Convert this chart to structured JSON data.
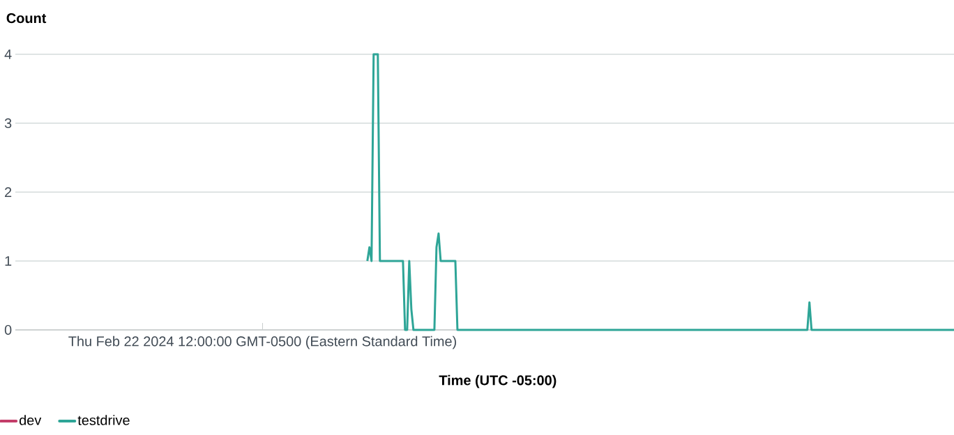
{
  "chart_data": {
    "type": "line",
    "ylabel": "Count",
    "xlabel": "Time (UTC -05:00)",
    "categories": [
      null,
      null,
      null,
      null,
      null,
      null,
      null,
      null,
      null,
      null,
      null,
      null,
      null,
      null,
      null,
      null,
      null,
      null,
      null,
      null,
      null,
      null,
      null,
      null,
      null,
      null,
      null,
      null,
      null,
      null,
      null,
      null,
      null,
      null,
      null,
      null,
      null,
      null,
      null,
      null,
      null,
      null,
      null,
      null,
      null,
      null,
      null,
      null,
      null,
      null,
      null,
      null,
      null,
      null,
      null,
      null,
      null,
      null,
      null,
      null,
      null,
      null,
      null,
      null,
      null,
      null,
      null,
      null,
      null,
      null,
      null,
      null,
      null,
      null,
      null,
      null,
      null,
      null,
      null,
      null,
      null,
      null,
      null,
      null,
      null,
      null,
      null,
      null,
      null,
      null,
      null,
      null,
      null,
      null,
      null,
      null,
      null,
      null,
      null,
      null,
      null,
      null,
      null,
      null,
      null,
      null,
      null,
      null,
      null,
      null,
      null,
      null,
      null,
      null,
      null,
      null,
      null,
      null,
      "Thu Feb 22 2024 12:00:00 GMT-0500 (Eastern Standard Time)",
      null,
      null,
      null,
      null,
      null,
      null,
      null,
      null,
      null,
      null,
      null,
      null,
      null,
      null,
      null,
      null,
      null,
      null,
      null,
      null,
      null,
      null,
      null,
      null,
      null,
      null,
      null,
      null,
      null,
      null,
      null,
      null,
      null,
      null,
      null,
      null,
      null,
      null,
      null,
      null,
      null,
      null,
      null,
      null,
      null,
      null,
      null,
      null,
      null,
      null,
      null,
      null,
      null,
      null,
      null,
      null,
      null,
      null,
      null,
      null,
      null,
      null,
      null,
      null,
      null,
      null,
      null,
      null,
      null,
      null,
      null,
      null,
      null,
      null,
      null,
      null,
      null,
      null,
      null,
      null,
      null,
      null,
      null,
      null,
      null,
      null,
      null,
      null,
      null,
      null,
      null,
      null,
      null,
      null,
      null,
      null,
      null,
      null,
      null,
      null,
      null,
      null,
      null,
      null,
      null,
      null,
      null,
      null,
      null,
      null,
      null,
      null,
      null,
      null,
      null,
      null,
      null,
      null,
      null,
      null,
      null,
      null,
      null,
      null,
      null,
      null,
      null,
      null,
      null,
      null,
      null,
      null,
      null,
      null,
      null,
      null,
      null,
      null,
      null,
      null,
      null,
      null,
      null,
      null,
      null,
      null,
      null,
      null,
      null,
      null,
      null,
      null,
      null,
      null,
      null,
      null,
      null,
      null,
      null,
      null,
      null,
      null,
      null,
      null,
      null,
      null,
      null,
      null,
      null,
      null,
      null,
      null,
      null,
      null,
      null,
      null,
      null,
      null,
      null,
      null,
      null,
      null,
      null,
      null,
      null,
      null,
      null,
      null,
      null,
      null,
      null,
      null,
      null,
      null,
      null,
      null,
      null,
      null,
      null,
      null,
      null,
      null,
      null,
      null,
      null,
      null,
      null,
      null,
      null,
      null,
      null,
      null,
      null,
      null,
      null,
      null,
      null,
      null,
      null,
      null,
      null,
      null,
      null,
      null,
      null,
      null,
      null,
      null,
      null,
      null,
      null,
      null,
      null,
      null,
      null,
      null,
      null,
      null,
      null,
      null,
      null,
      null,
      null,
      null,
      null,
      null,
      null,
      null,
      null,
      null,
      null,
      null,
      null,
      null,
      null,
      null,
      null,
      null,
      null,
      null,
      null,
      null,
      null,
      null,
      null,
      null,
      null,
      null,
      null,
      null,
      null,
      null,
      null,
      null,
      null,
      null,
      null,
      null,
      null,
      null,
      null,
      null,
      null,
      null,
      null,
      null,
      null,
      null,
      null,
      null,
      null,
      null,
      null,
      null,
      null,
      null,
      null,
      null,
      null,
      null,
      null,
      null,
      null,
      null,
      null,
      null,
      null,
      null,
      null,
      null,
      null,
      null,
      null,
      null,
      null,
      null,
      null,
      null,
      null,
      null,
      null,
      null,
      null,
      null,
      null,
      null,
      null,
      null,
      null,
      null
    ],
    "series": [
      {
        "name": "dev",
        "color": "#c33d69",
        "values": [
          null,
          null,
          null,
          null,
          null,
          null,
          null,
          null,
          null,
          null,
          null,
          null,
          null,
          null,
          null,
          null,
          null,
          null,
          null,
          null,
          null,
          null,
          null,
          null,
          null,
          null,
          null,
          null,
          null,
          null,
          null,
          null,
          null,
          null,
          null,
          null,
          null,
          null,
          null,
          null,
          null,
          null,
          null,
          null,
          null,
          null,
          null,
          null,
          null,
          null,
          null,
          null,
          null,
          null,
          null,
          null,
          null,
          null,
          null,
          null,
          null,
          null,
          null,
          null,
          null,
          null,
          null,
          null,
          null,
          null,
          null,
          null,
          null,
          null,
          null,
          null,
          null,
          null,
          null,
          null,
          null,
          null,
          null,
          null,
          null,
          null,
          null,
          null,
          null,
          null,
          null,
          null,
          null,
          null,
          null,
          null,
          null,
          null,
          null,
          null,
          null,
          null,
          null,
          null,
          null,
          null,
          null,
          null,
          null,
          null,
          null,
          null,
          null,
          null,
          null,
          null,
          null,
          null,
          null,
          null,
          null,
          null,
          null,
          null,
          null,
          null,
          null,
          null,
          null,
          null,
          null,
          null,
          null,
          null,
          null,
          null,
          null,
          null,
          null,
          null,
          null,
          null,
          null,
          null,
          null,
          null,
          null,
          null,
          null,
          null,
          null,
          null,
          null,
          null,
          null,
          null,
          null,
          null,
          null,
          null,
          null,
          null,
          null,
          null,
          null,
          null,
          null,
          null,
          null,
          null,
          null,
          null,
          null,
          null,
          null,
          null,
          null,
          null,
          null,
          null,
          null,
          null,
          null,
          null,
          null,
          null,
          null,
          null,
          null,
          null,
          null,
          null,
          null,
          null,
          null,
          null,
          null,
          null,
          null,
          null,
          null,
          null,
          null,
          null,
          null,
          null,
          null,
          null,
          null,
          null,
          null,
          null,
          null,
          null,
          null,
          null,
          null,
          null,
          null,
          null,
          null,
          null,
          null,
          null,
          null,
          null,
          null,
          null,
          null,
          null,
          null,
          null,
          null,
          null,
          null,
          null,
          null,
          null,
          null,
          null,
          null,
          null,
          null,
          null,
          null,
          null,
          null,
          null,
          null,
          null,
          null,
          null,
          null,
          null,
          null,
          null,
          null,
          null,
          null,
          null,
          null,
          null,
          null,
          null,
          null,
          null,
          null,
          null,
          null,
          null,
          null,
          null,
          null,
          null,
          null,
          null,
          null,
          null,
          null,
          null,
          null,
          null,
          null,
          null,
          null,
          null,
          null,
          null,
          null,
          null,
          null,
          null,
          null,
          null,
          null,
          null,
          null,
          null,
          null,
          null,
          null,
          null,
          null,
          null,
          null,
          null,
          null,
          null,
          null,
          null,
          null,
          null,
          null,
          null,
          null,
          null,
          null,
          null,
          null,
          null,
          null,
          null,
          null,
          null,
          null,
          null,
          null,
          null,
          null,
          null,
          null,
          null,
          null,
          null,
          null,
          null,
          null,
          null,
          null,
          null,
          null,
          null,
          null,
          null,
          null,
          null,
          null,
          null,
          null,
          null,
          null,
          null,
          null,
          null,
          null,
          null,
          null,
          null,
          null,
          null,
          null,
          null,
          null,
          null,
          null,
          null,
          null,
          null,
          null,
          null,
          null,
          null,
          null,
          null,
          null,
          null,
          null,
          null,
          null,
          null,
          null,
          null,
          null,
          null,
          null,
          null,
          null,
          null,
          null,
          null,
          null,
          null,
          null,
          null,
          null,
          null,
          null,
          null,
          null,
          null,
          null,
          null,
          null,
          null,
          null,
          null,
          null,
          null,
          null,
          null,
          null,
          null,
          null,
          null,
          null,
          null,
          null,
          null,
          null,
          null,
          null,
          null,
          null,
          null,
          null,
          null,
          null,
          null,
          null,
          null,
          null,
          null,
          null,
          null,
          null,
          null,
          null,
          null,
          null,
          null,
          null,
          null,
          null,
          null,
          null,
          null,
          null,
          null,
          null
        ]
      },
      {
        "name": "testdrive",
        "color": "#2ea597",
        "values": [
          null,
          null,
          null,
          null,
          null,
          null,
          null,
          null,
          null,
          null,
          null,
          null,
          null,
          null,
          null,
          null,
          null,
          null,
          null,
          null,
          null,
          null,
          null,
          null,
          null,
          null,
          null,
          null,
          null,
          null,
          null,
          null,
          null,
          null,
          null,
          null,
          null,
          null,
          null,
          null,
          null,
          null,
          null,
          null,
          null,
          null,
          null,
          null,
          null,
          null,
          null,
          null,
          null,
          null,
          null,
          null,
          null,
          null,
          null,
          null,
          null,
          null,
          null,
          null,
          null,
          null,
          null,
          null,
          null,
          null,
          null,
          null,
          null,
          null,
          null,
          null,
          null,
          null,
          null,
          null,
          null,
          null,
          null,
          null,
          null,
          null,
          null,
          null,
          null,
          null,
          null,
          null,
          null,
          null,
          null,
          null,
          null,
          null,
          null,
          null,
          null,
          null,
          null,
          null,
          null,
          null,
          null,
          null,
          null,
          null,
          null,
          null,
          null,
          null,
          null,
          null,
          null,
          null,
          null,
          null,
          null,
          null,
          null,
          null,
          null,
          null,
          null,
          null,
          null,
          null,
          null,
          null,
          null,
          null,
          null,
          null,
          null,
          null,
          null,
          null,
          null,
          null,
          null,
          null,
          null,
          null,
          null,
          null,
          null,
          null,
          null,
          null,
          null,
          null,
          null,
          null,
          null,
          null,
          null,
          null,
          null,
          null,
          null,
          null,
          null,
          null,
          null,
          null,
          1,
          1.2,
          1,
          4,
          4,
          4,
          1,
          1,
          1,
          1,
          1,
          1,
          1,
          1,
          1,
          1,
          1,
          1,
          0,
          0,
          1,
          0.3,
          0,
          0,
          0,
          0,
          0,
          0,
          0,
          0,
          0,
          0,
          0,
          1.2,
          1.4,
          1,
          1,
          1,
          1,
          1,
          1,
          1,
          1,
          0,
          0,
          0,
          0,
          0,
          0,
          0,
          0,
          0,
          0,
          0,
          0,
          0,
          0,
          0,
          0,
          0,
          0,
          0,
          0,
          0,
          0,
          0,
          0,
          0,
          0,
          0,
          0,
          0,
          0,
          0,
          0,
          0,
          0,
          0,
          0,
          0,
          0,
          0,
          0,
          0,
          0,
          0,
          0,
          0,
          0,
          0,
          0,
          0,
          0,
          0,
          0,
          0,
          0,
          0,
          0,
          0,
          0,
          0,
          0,
          0,
          0,
          0,
          0,
          0,
          0,
          0,
          0,
          0,
          0,
          0,
          0,
          0,
          0,
          0,
          0,
          0,
          0,
          0,
          0,
          0,
          0,
          0,
          0,
          0,
          0,
          0,
          0,
          0,
          0,
          0,
          0,
          0,
          0,
          0,
          0,
          0,
          0,
          0,
          0,
          0,
          0,
          0,
          0,
          0,
          0,
          0,
          0,
          0,
          0,
          0,
          0,
          0,
          0,
          0,
          0,
          0,
          0,
          0,
          0,
          0,
          0,
          0,
          0,
          0,
          0,
          0,
          0,
          0,
          0,
          0,
          0,
          0,
          0,
          0,
          0,
          0,
          0,
          0,
          0,
          0,
          0,
          0,
          0,
          0,
          0,
          0,
          0,
          0,
          0,
          0,
          0,
          0,
          0,
          0,
          0,
          0,
          0,
          0,
          0,
          0,
          0,
          0,
          0,
          0,
          0,
          0,
          0,
          0.4,
          0,
          0,
          0,
          0,
          0,
          0,
          0,
          0,
          0,
          0,
          0,
          0,
          0,
          0,
          0,
          0,
          0,
          0,
          0,
          0,
          0,
          0,
          0,
          0,
          0,
          0,
          0,
          0,
          0,
          0,
          0,
          0,
          0,
          0,
          0,
          0,
          0,
          0,
          0,
          0,
          0,
          0,
          0,
          0,
          0,
          0,
          0,
          0,
          0,
          0,
          0,
          0,
          0,
          0,
          0,
          0,
          0,
          0,
          0,
          0,
          0,
          0,
          0,
          0,
          0,
          0,
          0,
          0,
          0
        ]
      }
    ],
    "ylim": [
      0,
      4
    ],
    "yticks": [
      0,
      1,
      2,
      3,
      4
    ],
    "grid": "y",
    "legend": "bottom left",
    "marker": "none",
    "line_style": "solid"
  }
}
